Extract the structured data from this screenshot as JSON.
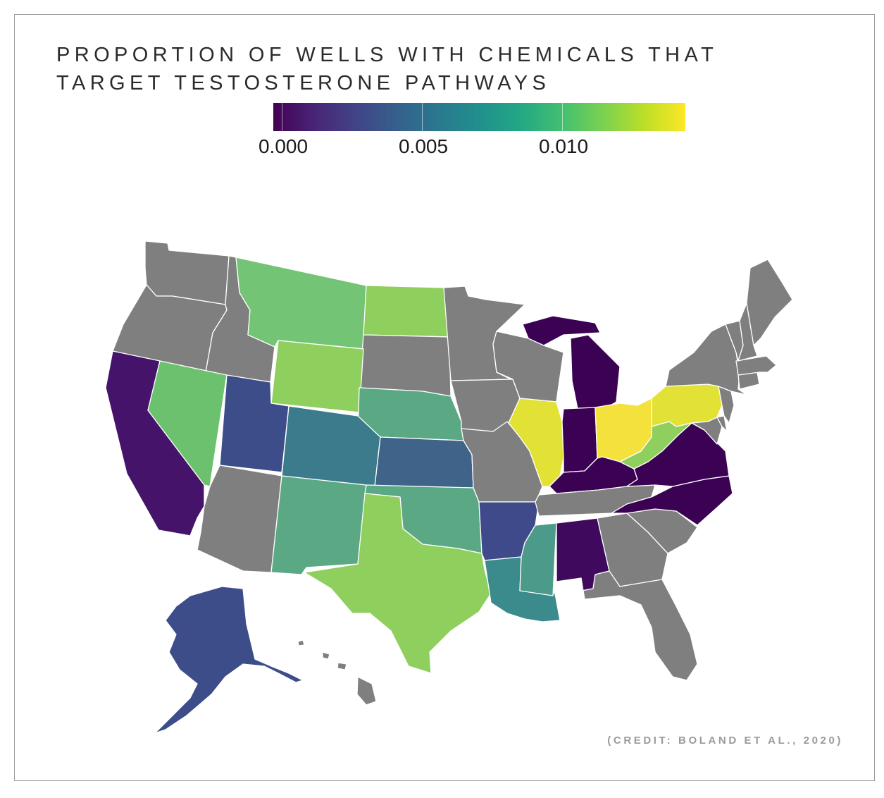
{
  "title": {
    "line1": "PROPORTION OF WELLS WITH CHEMICALS THAT",
    "line2": "TARGET TESTOSTERONE PATHWAYS"
  },
  "legend": {
    "ticks": [
      {
        "value": 0.0,
        "label": "0.000"
      },
      {
        "value": 0.005,
        "label": "0.005"
      },
      {
        "value": 0.01,
        "label": "0.010"
      }
    ],
    "range": [
      0.0,
      0.0147
    ],
    "colormap": "viridis"
  },
  "credit": "(CREDIT: BOLAND ET AL., 2020)",
  "map_data": {
    "no_data_color": "#7f7f7f",
    "states": [
      {
        "id": "WA",
        "value": null
      },
      {
        "id": "OR",
        "value": null
      },
      {
        "id": "ID",
        "value": null
      },
      {
        "id": "MT",
        "value": 0.0105,
        "color": "#74c476"
      },
      {
        "id": "ND",
        "value": 0.0115,
        "color": "#8fcf5e"
      },
      {
        "id": "SD",
        "value": null
      },
      {
        "id": "MN",
        "value": null
      },
      {
        "id": "WI",
        "value": null
      },
      {
        "id": "MI",
        "value": 0.0,
        "color": "#3b0253"
      },
      {
        "id": "CA",
        "value": 0.001,
        "color": "#45136a"
      },
      {
        "id": "NV",
        "value": 0.0105,
        "color": "#6cc16f"
      },
      {
        "id": "UT",
        "value": 0.003,
        "color": "#3d4d8a"
      },
      {
        "id": "WY",
        "value": 0.0115,
        "color": "#8fcf5e"
      },
      {
        "id": "CO",
        "value": 0.006,
        "color": "#3c7b8b"
      },
      {
        "id": "NE",
        "value": 0.0085,
        "color": "#5ba885"
      },
      {
        "id": "KS",
        "value": 0.005,
        "color": "#3f6389"
      },
      {
        "id": "IA",
        "value": null
      },
      {
        "id": "IL",
        "value": 0.014,
        "color": "#e2e236"
      },
      {
        "id": "IN",
        "value": 0.0,
        "color": "#3b0253"
      },
      {
        "id": "OH",
        "value": 0.0145,
        "color": "#f5e13c"
      },
      {
        "id": "PA",
        "value": 0.014,
        "color": "#e2e236"
      },
      {
        "id": "NY",
        "value": null
      },
      {
        "id": "VT",
        "value": null
      },
      {
        "id": "NH",
        "value": null
      },
      {
        "id": "ME",
        "value": null
      },
      {
        "id": "MA",
        "value": null
      },
      {
        "id": "CT",
        "value": null
      },
      {
        "id": "NJ",
        "value": null
      },
      {
        "id": "DE",
        "value": null
      },
      {
        "id": "MD",
        "value": null
      },
      {
        "id": "WV",
        "value": 0.0115,
        "color": "#8fcf5e"
      },
      {
        "id": "VA",
        "value": 0.0,
        "color": "#3b0253"
      },
      {
        "id": "KY",
        "value": 0.0,
        "color": "#3b0253"
      },
      {
        "id": "NC",
        "value": 0.0,
        "color": "#3b0253"
      },
      {
        "id": "TN",
        "value": null
      },
      {
        "id": "SC",
        "value": null
      },
      {
        "id": "GA",
        "value": null
      },
      {
        "id": "FL",
        "value": null
      },
      {
        "id": "AL",
        "value": 0.0005,
        "color": "#3f0a5e"
      },
      {
        "id": "MS",
        "value": 0.008,
        "color": "#4c9a8a"
      },
      {
        "id": "LA",
        "value": 0.007,
        "color": "#3b8a8c"
      },
      {
        "id": "AR",
        "value": 0.003,
        "color": "#3e4a89"
      },
      {
        "id": "MO",
        "value": null
      },
      {
        "id": "OK",
        "value": 0.0085,
        "color": "#5ba885"
      },
      {
        "id": "TX",
        "value": 0.0115,
        "color": "#8fcf5e"
      },
      {
        "id": "NM",
        "value": 0.0085,
        "color": "#5ba885"
      },
      {
        "id": "AZ",
        "value": null
      },
      {
        "id": "AK",
        "value": 0.003,
        "color": "#3d4d8a"
      },
      {
        "id": "HI",
        "value": null
      }
    ]
  }
}
